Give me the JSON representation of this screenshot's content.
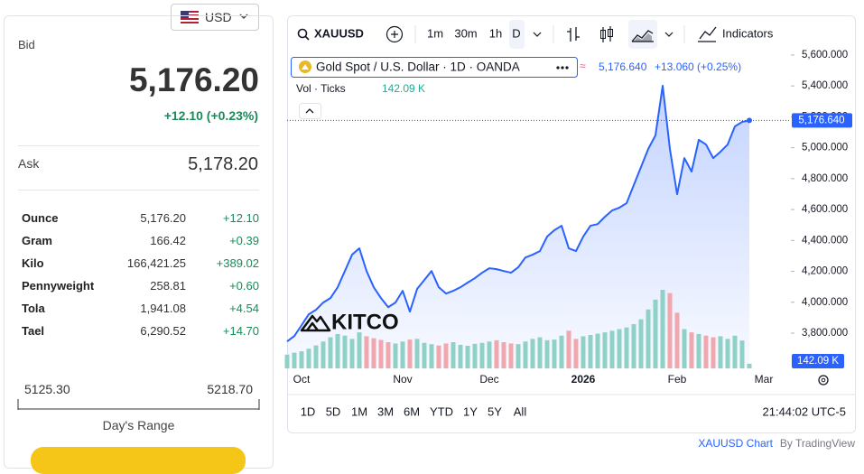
{
  "header": {
    "currency": "USD"
  },
  "quote": {
    "bid_label": "Bid",
    "bid": "5,176.20",
    "change": "+12.10 (+0.23%)",
    "ask_label": "Ask",
    "ask": "5,178.20"
  },
  "table": {
    "rows": [
      [
        "Ounce",
        "5,176.20",
        "+12.10"
      ],
      [
        "Gram",
        "166.42",
        "+0.39"
      ],
      [
        "Kilo",
        "166,421.25",
        "+389.02"
      ],
      [
        "Pennyweight",
        "258.81",
        "+0.60"
      ],
      [
        "Tola",
        "1,941.08",
        "+4.54"
      ],
      [
        "Tael",
        "6,290.52",
        "+14.70"
      ]
    ]
  },
  "day_range": {
    "low": "5125.30",
    "high": "5218.70",
    "label": "Day's Range"
  },
  "toolbar": {
    "symbol": "XAUUSD",
    "intervals": [
      "1m",
      "30m",
      "1h",
      "D"
    ],
    "indicators": "Indicators"
  },
  "chart_data": {
    "type": "area",
    "logo": "KITCO",
    "change": "+13.060 (+0.25%)",
    "last_value_label": "5,176.640",
    "volume_label": "142.09 K",
    "categories": [
      null,
      null,
      "Oct",
      null,
      null,
      null,
      null,
      null,
      null,
      null,
      null,
      null,
      null,
      null,
      null,
      null,
      "Nov",
      null,
      null,
      null,
      null,
      null,
      null,
      null,
      null,
      null,
      null,
      null,
      "Dec",
      null,
      null,
      null,
      null,
      null,
      null,
      null,
      null,
      null,
      null,
      null,
      null,
      "2026",
      null,
      null,
      null,
      null,
      null,
      null,
      null,
      null,
      null,
      null,
      null,
      null,
      "Feb",
      null,
      null,
      null,
      null,
      null,
      null,
      null,
      null,
      null,
      null,
      null,
      "Mar"
    ],
    "series": [
      {
        "name": "Gold Spot / U.S. Dollar · 1D · OANDA",
        "type": "area",
        "color": "#2962ff",
        "values": [
          3746,
          3781,
          3851,
          3922,
          3951,
          3998,
          4027,
          4097,
          4202,
          4308,
          4349,
          4202,
          4097,
          4027,
          3968,
          3998,
          4074,
          3939,
          4086,
          4144,
          4202,
          4097,
          4056,
          4074,
          4097,
          4127,
          4156,
          4191,
          4220,
          4214,
          4202,
          4191,
          4226,
          4290,
          4308,
          4331,
          4425,
          4466,
          4495,
          4349,
          4331,
          4425,
          4495,
          4506,
          4553,
          4594,
          4612,
          4641,
          4758,
          4875,
          4992,
          5080,
          5401,
          4992,
          4699,
          4933,
          4846,
          5051,
          5021,
          4933,
          4974,
          5021,
          5138,
          5167,
          5176.64,
          null,
          null
        ]
      },
      {
        "name": "Vol · Ticks",
        "type": "volume",
        "up_color": "#8fd1c7",
        "down_color": "#f0a7ad",
        "values": [
          420,
          480,
          520,
          600,
          700,
          820,
          950,
          1050,
          1000,
          900,
          1100,
          980,
          920,
          870,
          800,
          760,
          820,
          880,
          900,
          780,
          740,
          700,
          760,
          800,
          720,
          690,
          750,
          780,
          820,
          860,
          800,
          760,
          740,
          820,
          900,
          950,
          860,
          880,
          1000,
          1150,
          900,
          980,
          1020,
          1060,
          1100,
          1150,
          1200,
          1250,
          1350,
          1500,
          1800,
          2100,
          2400,
          2300,
          1700,
          1200,
          1100,
          1050,
          1000,
          950,
          980,
          900,
          1000,
          850,
          142.09,
          null,
          null
        ]
      }
    ],
    "ylim": [
      3572,
      5664
    ],
    "volume_ylim": [
      0,
      9876
    ],
    "yticks": [
      {
        "value": 3800,
        "label": "3,800.000"
      },
      {
        "value": 4000,
        "label": "4,000.000"
      },
      {
        "value": 4200,
        "label": "4,200.000"
      },
      {
        "value": 4400,
        "label": "4,400.000"
      },
      {
        "value": 4600,
        "label": "4,600.000"
      },
      {
        "value": 4800,
        "label": "4,800.000"
      },
      {
        "value": 5000,
        "label": "5,000.000"
      },
      {
        "value": 5200,
        "label": "5,200.000"
      },
      {
        "value": 5400,
        "label": "5,400.000"
      },
      {
        "value": 5600,
        "label": "5,600.000"
      }
    ]
  },
  "ranges": [
    "1D",
    "5D",
    "1M",
    "3M",
    "6M",
    "YTD",
    "1Y",
    "5Y",
    "All"
  ],
  "clock": "21:44:02 UTC-5",
  "footer": {
    "chart": "XAUUSD Chart",
    "by": "By TradingView"
  }
}
